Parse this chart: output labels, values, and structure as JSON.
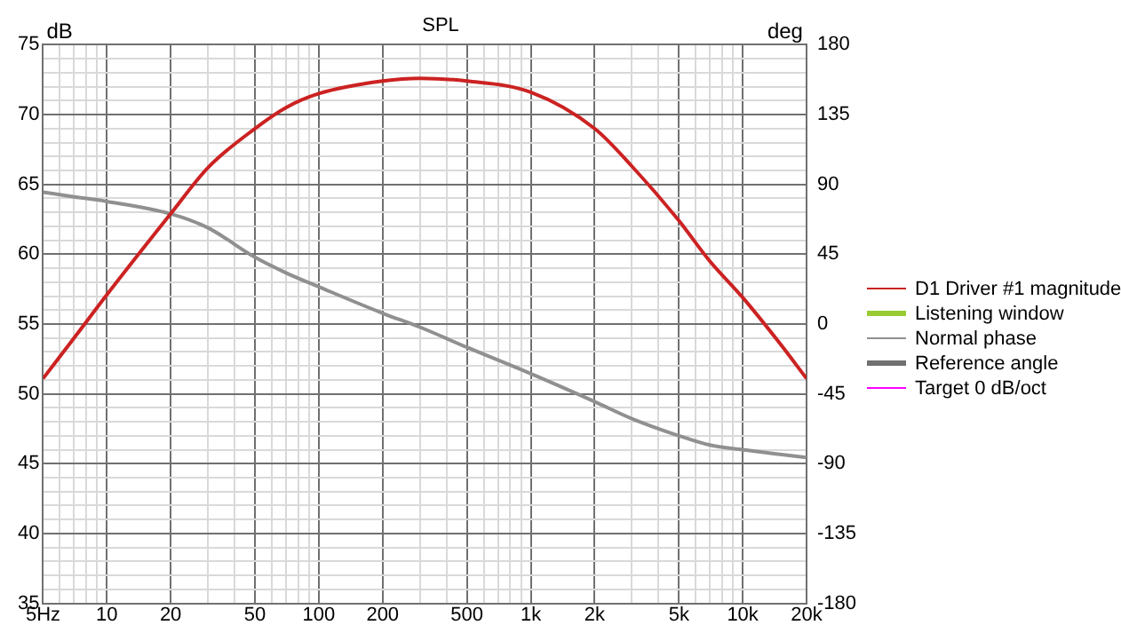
{
  "chart_data": {
    "type": "line",
    "title": "SPL",
    "ylabel": "dB",
    "y2label": "deg",
    "x": [
      5,
      7,
      10,
      20,
      30,
      50,
      70,
      100,
      200,
      300,
      500,
      1000,
      2000,
      3000,
      5000,
      7000,
      10000,
      15000,
      20000
    ],
    "series": [
      {
        "name": "D1 Driver #1 magnitude",
        "color": "#cc2222",
        "values": [
          51.1,
          54.0,
          57.1,
          62.9,
          66.2,
          69.0,
          70.5,
          71.5,
          72.4,
          72.6,
          72.4,
          71.6,
          69,
          66.3,
          62.4,
          59.5,
          56.9,
          53.6,
          51.1
        ]
      },
      {
        "name": "Listening window",
        "color": "#99cc33",
        "values": [
          null,
          null,
          null,
          null,
          null,
          null,
          null,
          null,
          null,
          null,
          null,
          null,
          null,
          null,
          null,
          null,
          null,
          null,
          null
        ]
      },
      {
        "name": "Normal phase",
        "color": "#909090",
        "axis": "y2",
        "values": [
          85,
          82,
          79,
          71,
          62,
          43,
          33,
          24,
          7,
          -2,
          -15,
          -32,
          -50,
          -61,
          -72,
          -78,
          -81,
          -84,
          -86
        ]
      },
      {
        "name": "Reference angle",
        "color": "#707070",
        "axis": "y2",
        "values": [
          null,
          null,
          null,
          null,
          null,
          null,
          null,
          null,
          null,
          null,
          null,
          null,
          null,
          null,
          null,
          null,
          null,
          null,
          null
        ]
      },
      {
        "name": "Target 0 dB/oct",
        "color": "#ff00ff",
        "values": [
          null,
          null,
          null,
          null,
          null,
          null,
          null,
          null,
          null,
          null,
          null,
          null,
          null,
          null,
          null,
          null,
          null,
          null,
          null
        ]
      }
    ],
    "log": "x",
    "xlim": [
      5,
      20000
    ],
    "xticks": [
      {
        "value": 5,
        "label": "5Hz"
      },
      {
        "value": 6,
        "label": null
      },
      {
        "value": 7,
        "label": null
      },
      {
        "value": 8,
        "label": null
      },
      {
        "value": 9,
        "label": null
      },
      10,
      20,
      {
        "value": 30,
        "label": null
      },
      {
        "value": 40,
        "label": null
      },
      50,
      {
        "value": 60,
        "label": null
      },
      {
        "value": 70,
        "label": null
      },
      {
        "value": 80,
        "label": null
      },
      {
        "value": 90,
        "label": null
      },
      100,
      200,
      {
        "value": 300,
        "label": null
      },
      {
        "value": 400,
        "label": null
      },
      500,
      {
        "value": 600,
        "label": null
      },
      {
        "value": 700,
        "label": null
      },
      {
        "value": 800,
        "label": null
      },
      {
        "value": 900,
        "label": null
      },
      {
        "value": 1000,
        "label": "1k"
      },
      {
        "value": 2000,
        "label": "2k"
      },
      {
        "value": 3000,
        "label": null
      },
      {
        "value": 4000,
        "label": null
      },
      {
        "value": 5000,
        "label": "5k"
      },
      {
        "value": 6000,
        "label": null
      },
      {
        "value": 7000,
        "label": null
      },
      {
        "value": 8000,
        "label": null
      },
      {
        "value": 9000,
        "label": null
      },
      {
        "value": 10000,
        "label": "10k"
      },
      {
        "value": 20000,
        "label": "20k"
      }
    ],
    "ylim": [
      35,
      75
    ],
    "yticks": [
      35,
      {
        "value": 36,
        "label": null
      },
      {
        "value": 37,
        "label": null
      },
      {
        "value": 38,
        "label": null
      },
      {
        "value": 39,
        "label": null
      },
      40,
      {
        "value": 41,
        "label": null
      },
      {
        "value": 42,
        "label": null
      },
      {
        "value": 43,
        "label": null
      },
      {
        "value": 44,
        "label": null
      },
      45,
      {
        "value": 46,
        "label": null
      },
      {
        "value": 47,
        "label": null
      },
      {
        "value": 48,
        "label": null
      },
      {
        "value": 49,
        "label": null
      },
      50,
      {
        "value": 51,
        "label": null
      },
      {
        "value": 52,
        "label": null
      },
      {
        "value": 53,
        "label": null
      },
      {
        "value": 54,
        "label": null
      },
      55,
      {
        "value": 56,
        "label": null
      },
      {
        "value": 57,
        "label": null
      },
      {
        "value": 58,
        "label": null
      },
      {
        "value": 59,
        "label": null
      },
      60,
      {
        "value": 61,
        "label": null
      },
      {
        "value": 62,
        "label": null
      },
      {
        "value": 63,
        "label": null
      },
      {
        "value": 64,
        "label": null
      },
      65,
      {
        "value": 66,
        "label": null
      },
      {
        "value": 67,
        "label": null
      },
      {
        "value": 68,
        "label": null
      },
      {
        "value": 69,
        "label": null
      },
      70,
      {
        "value": 71,
        "label": null
      },
      {
        "value": 72,
        "label": null
      },
      {
        "value": 73,
        "label": null
      },
      {
        "value": 74,
        "label": null
      },
      75
    ],
    "y2lim": [
      -180,
      180
    ],
    "y2ticks": [
      -180,
      -135,
      -90,
      -45,
      0,
      45,
      90,
      135,
      180
    ],
    "grid": true,
    "legend": "right",
    "marker": "none",
    "line_style": "solid"
  }
}
